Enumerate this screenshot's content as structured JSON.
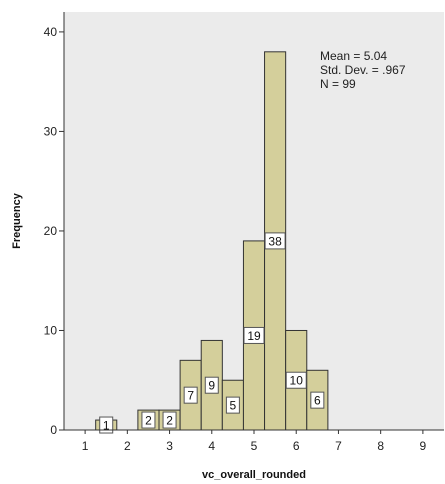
{
  "chart_data": {
    "type": "bar",
    "subtype": "histogram",
    "xlabel": "vc_overall_rounded",
    "ylabel": "Frequency",
    "xlim": [
      0.5,
      9.5
    ],
    "ylim": [
      0,
      42
    ],
    "xticks": [
      1,
      2,
      3,
      4,
      5,
      6,
      7,
      8,
      9
    ],
    "yticks": [
      0,
      10,
      20,
      30,
      40
    ],
    "bin_width": 0.5,
    "bins": [
      {
        "start": 1.25,
        "end": 1.75,
        "value": 1
      },
      {
        "start": 2.25,
        "end": 2.75,
        "value": 2
      },
      {
        "start": 2.75,
        "end": 3.25,
        "value": 2
      },
      {
        "start": 3.25,
        "end": 3.75,
        "value": 7
      },
      {
        "start": 3.75,
        "end": 4.25,
        "value": 9
      },
      {
        "start": 4.25,
        "end": 4.75,
        "value": 5
      },
      {
        "start": 4.75,
        "end": 5.25,
        "value": 19
      },
      {
        "start": 5.25,
        "end": 5.75,
        "value": 38
      },
      {
        "start": 5.75,
        "end": 6.25,
        "value": 10
      },
      {
        "start": 6.25,
        "end": 6.75,
        "value": 6
      }
    ],
    "stats": [
      "Mean = 5.04",
      "Std. Dev. = .967",
      "N = 99"
    ],
    "grid": false,
    "colors": {
      "bar_fill": "#d4cf9b",
      "bar_stroke": "#333333",
      "plot_background": "#ebebeb",
      "label_box": "#ffffff"
    }
  }
}
